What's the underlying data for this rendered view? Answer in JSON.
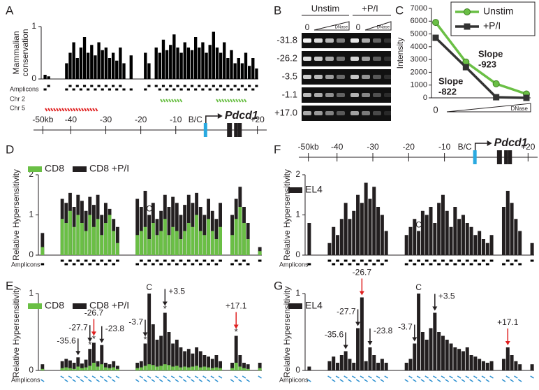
{
  "chart_data": [
    {
      "type": "bar",
      "label": "A",
      "ylabel": [
        "Mammalian",
        "conservation"
      ],
      "ylim": [
        0,
        1
      ],
      "yticks": [
        0,
        1
      ],
      "color": "#000000",
      "values": [
        0.08,
        0.05,
        null,
        null,
        null,
        null,
        0.3,
        0.5,
        0.7,
        0.4,
        0.6,
        0.8,
        0.5,
        0.65,
        0.45,
        0.7,
        0.55,
        0.6,
        0.4,
        0.5,
        0.35,
        0.6,
        0.3,
        null,
        0.45,
        null,
        null,
        null,
        0.5,
        0.3,
        null,
        0.6,
        0.5,
        0.75,
        0.55,
        0.65,
        0.85,
        0.6,
        0.5,
        0.7,
        0.6,
        0.55,
        0.8,
        0.6,
        0.7,
        0.5,
        0.65,
        0.9,
        0.6,
        0.5,
        0.7,
        0.4,
        0.55,
        0.3,
        0.4,
        0.3,
        0.5,
        0.25,
        0.4,
        0.2
      ],
      "amplicons_label": "Amplicons",
      "amplicon_color": "#000000",
      "tracks": [
        {
          "name": "Chr 2",
          "color": "#6abf45"
        },
        {
          "name": "Chr 5",
          "color": "#e02020"
        }
      ]
    },
    {
      "type": "line",
      "label": "C",
      "ylabel": "Intensity",
      "xlabel": "DNase",
      "categories": [
        "0",
        null,
        null,
        null
      ],
      "ylim": [
        0,
        7000
      ],
      "yticks": [
        0,
        1000,
        2000,
        3000,
        4000,
        5000,
        6000,
        7000
      ],
      "legend": "upper right",
      "series": [
        {
          "name": "Unstim",
          "color": "#6abf45",
          "marker": "circle",
          "values": [
            5900,
            2800,
            1100,
            300
          ]
        },
        {
          "name": "+P/I",
          "color": "#333333",
          "marker": "square",
          "values": [
            4700,
            2400,
            50,
            0
          ]
        }
      ],
      "annotations": [
        [
          "Slope",
          "-923"
        ],
        [
          "Slope",
          "-822"
        ]
      ]
    },
    {
      "type": "bar",
      "label": "D",
      "ylabel": "Relative Hypersensitivity",
      "ylim": [
        0,
        2
      ],
      "yticks": [
        0,
        1,
        2
      ],
      "amplicons_label": "Amplicons",
      "amplicon_color": "#000000",
      "series": [
        {
          "name": "CD8",
          "color": "#6abf45",
          "values": [
            0.2,
            null,
            null,
            null,
            null,
            0.9,
            0.8,
            1.1,
            0.7,
            1.0,
            0.8,
            0.6,
            1.0,
            0.7,
            0.9,
            0.5,
            0.8,
            1.0,
            0.6,
            0.3,
            null,
            null,
            null,
            null,
            0.5,
            0.6,
            0.7,
            0.4,
            0.8,
            0.5,
            0.6,
            0.9,
            0.5,
            0.7,
            0.6,
            0.4,
            0.6,
            0.8,
            0.7,
            1.0,
            0.6,
            0.5,
            0.9,
            0.6,
            0.4,
            0.7,
            null,
            null,
            0.5,
            0.9,
            1.2,
            0.8,
            0.4,
            null,
            null,
            0.1
          ]
        },
        {
          "name": "CD8 +P/I",
          "color": "#231f20",
          "values": [
            0.55,
            null,
            null,
            null,
            null,
            1.4,
            1.3,
            1.55,
            1.2,
            1.5,
            1.35,
            1.1,
            1.45,
            1.25,
            1.5,
            1.0,
            1.3,
            1.15,
            0.9,
            0.7,
            null,
            null,
            null,
            null,
            1.4,
            1.2,
            1.6,
            1.0,
            1.3,
            0.9,
            1.1,
            1.5,
            1.2,
            1.45,
            1.3,
            1.0,
            1.25,
            1.5,
            1.3,
            1.55,
            1.2,
            1.0,
            1.4,
            1.1,
            0.9,
            1.3,
            null,
            null,
            1.0,
            1.4,
            1.7,
            1.2,
            0.8,
            null,
            null,
            0.2
          ]
        }
      ],
      "annotations": [
        {
          "text": "C",
          "color": "#2a8fd0",
          "arrow": false
        }
      ]
    },
    {
      "type": "bar",
      "label": "E",
      "ylabel": "Relative Hypersensitivity",
      "ylim": [
        0,
        1
      ],
      "yticks": [
        0,
        1
      ],
      "amplicons_label": "Amplicons",
      "amplicon_color": "#2a8fd0",
      "series": [
        {
          "name": "CD8",
          "color": "#6abf45",
          "values": [
            0.02,
            null,
            null,
            null,
            null,
            0.03,
            0.04,
            0.03,
            0.02,
            0.05,
            0.03,
            0.04,
            0.06,
            0.1,
            0.05,
            0.08,
            0.04,
            0.03,
            0.04,
            0.02,
            null,
            null,
            null,
            null,
            0.03,
            0.04,
            0.06,
            0.08,
            0.07,
            0.05,
            0.06,
            0.08,
            0.07,
            0.05,
            0.06,
            0.04,
            0.05,
            0.04,
            0.05,
            0.06,
            0.04,
            0.05,
            0.04,
            0.03,
            0.04,
            0.03,
            null,
            null,
            0.03,
            0.1,
            0.05,
            0.03,
            0.02,
            null,
            null,
            0.03
          ]
        },
        {
          "name": "CD8 +P/I",
          "color": "#231f20",
          "values": [
            0.08,
            null,
            null,
            null,
            null,
            0.12,
            0.15,
            0.13,
            0.1,
            0.17,
            0.09,
            0.14,
            0.28,
            0.36,
            0.12,
            0.33,
            0.1,
            0.08,
            0.12,
            0.06,
            null,
            null,
            null,
            null,
            0.1,
            0.12,
            0.35,
            1.0,
            0.6,
            0.4,
            0.45,
            0.75,
            0.5,
            0.35,
            0.4,
            0.3,
            0.25,
            0.28,
            0.22,
            0.3,
            0.25,
            0.2,
            0.18,
            0.15,
            0.2,
            0.12,
            null,
            null,
            0.1,
            0.45,
            0.2,
            0.1,
            0.08,
            null,
            null,
            0.1
          ]
        }
      ],
      "annotations": [
        {
          "text": "-35.6",
          "color": "#231f20",
          "arrow": true
        },
        {
          "text": "-27.7",
          "color": "#231f20",
          "arrow": true,
          "mark": "*"
        },
        {
          "text": "-26.7",
          "color": "#e02020",
          "arrow": true,
          "mark": "*"
        },
        {
          "text": "-23.8",
          "color": "#231f20",
          "arrow": true
        },
        {
          "text": "-3.7",
          "color": "#231f20",
          "arrow": true,
          "mark": "*"
        },
        {
          "text": "+3.5",
          "color": "#231f20",
          "arrow": true,
          "mark": "*"
        },
        {
          "text": "+17.1",
          "color": "#e02020",
          "arrow": true,
          "mark": "*"
        },
        {
          "text": "C",
          "color": "#2a8fd0",
          "arrow": false
        }
      ]
    },
    {
      "type": "bar",
      "label": "F",
      "ylabel": "Relative Hypersensitivity",
      "ylim": [
        0,
        2
      ],
      "yticks": [
        0,
        1,
        2
      ],
      "amplicons_label": "Amplicons",
      "amplicon_color": "#000000",
      "series": [
        {
          "name": "EL4",
          "color": "#231f20",
          "values": [
            0.8,
            null,
            null,
            null,
            null,
            0.3,
            0.7,
            0.5,
            0.9,
            1.3,
            0.9,
            1.1,
            1.5,
            1.3,
            1.8,
            1.4,
            1.7,
            1.2,
            1.0,
            0.6,
            null,
            null,
            null,
            null,
            0.5,
            0.7,
            0.9,
            0.6,
            1.1,
            1.0,
            1.2,
            0.8,
            1.3,
            1.5,
            1.1,
            0.7,
            1.2,
            0.9,
            1.0,
            0.8,
            0.7,
            0.5,
            0.6,
            0.4,
            0.3,
            0.5,
            null,
            null,
            1.2,
            1.6,
            1.3,
            0.9,
            0.6,
            null,
            null,
            0.3
          ]
        }
      ],
      "annotations": [
        {
          "text": "C",
          "color": "#2a8fd0",
          "arrow": false
        }
      ]
    },
    {
      "type": "bar",
      "label": "G",
      "ylabel": "Relative Hypersensitivity",
      "ylim": [
        0,
        1
      ],
      "yticks": [
        0,
        1
      ],
      "amplicons_label": "Amplicons",
      "amplicon_color": "#2a8fd0",
      "series": [
        {
          "name": "EL4",
          "color": "#231f20",
          "values": [
            0.05,
            null,
            null,
            null,
            null,
            0.12,
            0.18,
            0.1,
            0.2,
            0.25,
            0.15,
            0.1,
            0.55,
            0.95,
            0.12,
            0.3,
            0.2,
            0.1,
            0.15,
            0.1,
            null,
            null,
            null,
            null,
            0.1,
            0.15,
            0.35,
            1.0,
            0.5,
            0.4,
            0.55,
            0.75,
            0.5,
            0.45,
            0.4,
            0.35,
            0.3,
            0.28,
            0.25,
            0.3,
            0.2,
            0.18,
            0.15,
            0.12,
            0.1,
            0.12,
            null,
            null,
            0.15,
            0.3,
            0.2,
            0.12,
            0.08,
            null,
            null,
            0.08
          ]
        }
      ],
      "annotations": [
        {
          "text": "-35.6",
          "color": "#231f20",
          "arrow": true
        },
        {
          "text": "-27.7",
          "color": "#231f20",
          "arrow": true
        },
        {
          "text": "-26.7",
          "color": "#e02020",
          "arrow": true
        },
        {
          "text": "-23.8",
          "color": "#231f20",
          "arrow": true
        },
        {
          "text": "-3.7",
          "color": "#231f20",
          "arrow": true
        },
        {
          "text": "+3.5",
          "color": "#231f20",
          "arrow": true
        },
        {
          "text": "+17.1",
          "color": "#e02020",
          "arrow": true
        },
        {
          "text": "C",
          "color": "#2a8fd0",
          "arrow": false
        }
      ]
    }
  ],
  "gel": {
    "label": "B",
    "groups": [
      "Unstim",
      "+P/I"
    ],
    "zero": "0",
    "dnase": "DNase",
    "rows": [
      "-31.8",
      "-26.2",
      "-3.5",
      "-1.1",
      "+17.0"
    ]
  },
  "gene_map": {
    "labels": [
      "-50kb",
      "-40",
      "-30",
      "-20",
      "-10",
      "B/C",
      "+20"
    ],
    "gene": "Pdcd1"
  }
}
